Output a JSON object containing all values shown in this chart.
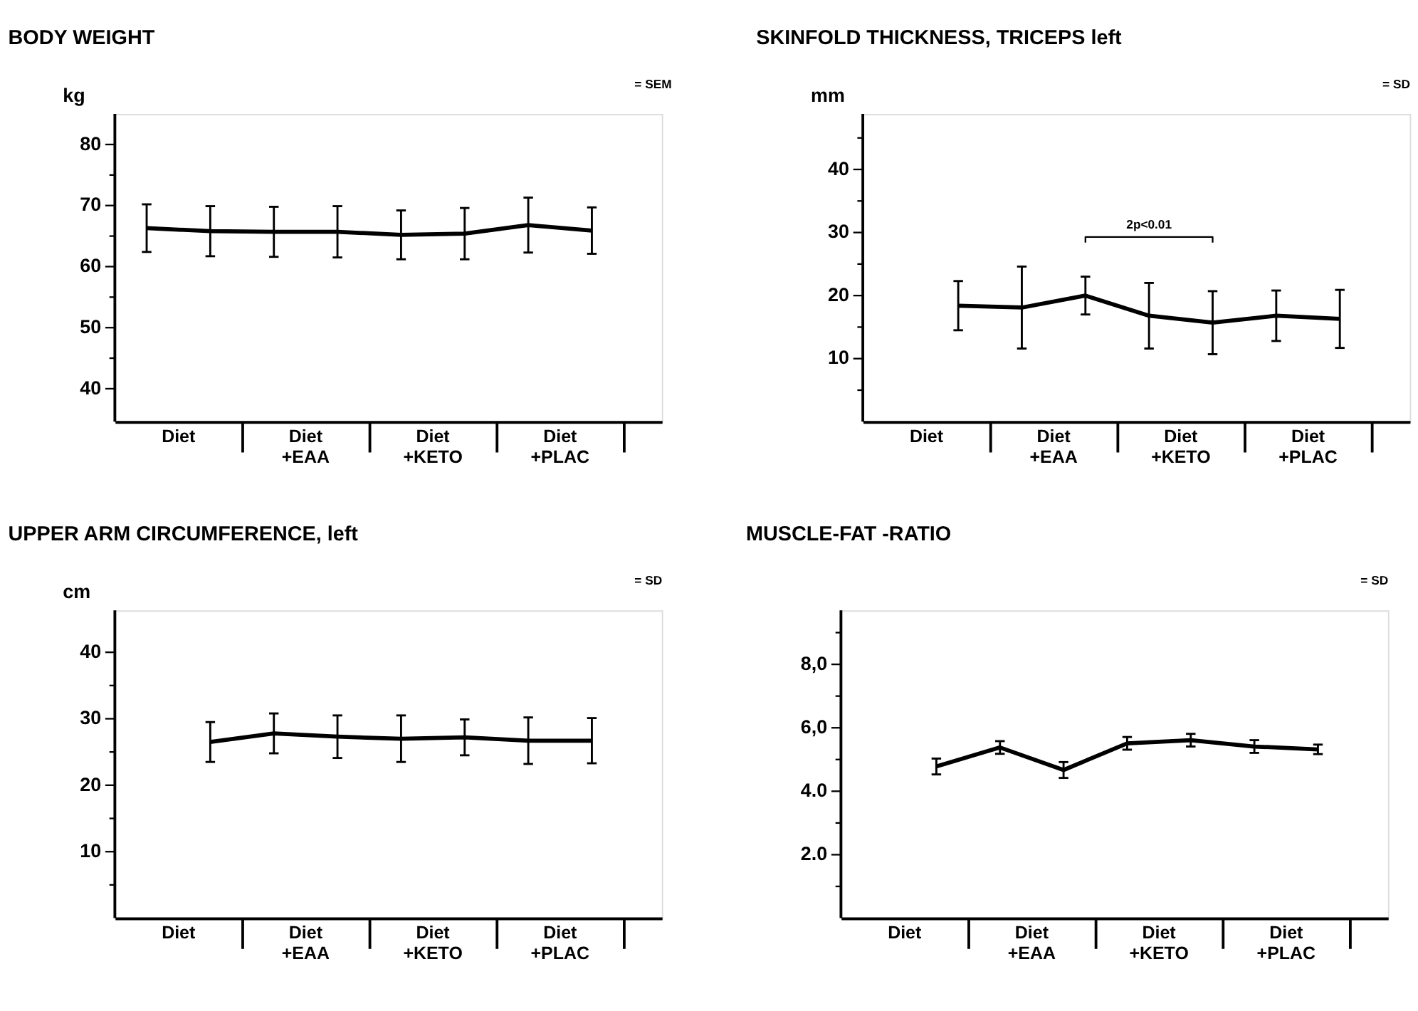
{
  "chart_data": [
    {
      "type": "line",
      "title": "BODY WEIGHT",
      "ylabel": "kg",
      "color": "#000000",
      "annotations": [
        "= SEM",
        "Diet",
        "Diet\n+EAA",
        "Diet\n+KETO",
        "Diet\n+PLAC"
      ],
      "categories": [
        null,
        null,
        null,
        null,
        null,
        null,
        null,
        null
      ],
      "values": [
        66.3,
        65.8,
        65.7,
        65.7,
        65.2,
        65.4,
        66.8,
        65.9
      ],
      "errors": [
        3.9,
        4.1,
        4.1,
        4.2,
        4.0,
        4.2,
        4.5,
        3.8
      ],
      "ylim": [
        34.6,
        85
      ],
      "yticks": [
        40,
        {
          "value": 45,
          "label": null
        },
        50,
        {
          "value": 55,
          "label": null
        },
        60,
        {
          "value": 65,
          "label": null
        },
        70,
        {
          "value": 75,
          "label": null
        },
        80
      ]
    },
    {
      "type": "line",
      "title": "SKINFOLD THICKNESS, TRICEPS left",
      "ylabel": "mm",
      "color": "#000000",
      "annotations": [
        "= SD",
        "Diet",
        "Diet\n+EAA",
        "Diet\n+KETO",
        "Diet\n+PLAC",
        "2p<0.01"
      ],
      "categories": [
        null,
        null,
        null,
        null,
        null,
        null,
        null,
        null
      ],
      "values": [
        null,
        18.4,
        18.1,
        20.0,
        16.8,
        15.7,
        16.8,
        16.3
      ],
      "errors": [
        null,
        3.9,
        6.5,
        3.0,
        5.2,
        5.0,
        4.0,
        4.6
      ],
      "ylim": [
        0,
        48.8
      ],
      "yticks": [
        {
          "value": 5,
          "label": null
        },
        10,
        {
          "value": 15,
          "label": null
        },
        20,
        {
          "value": 25,
          "label": null
        },
        30,
        {
          "value": 35,
          "label": null
        },
        40,
        {
          "value": 45,
          "label": null
        }
      ]
    },
    {
      "type": "line",
      "title": "UPPER ARM CIRCUMFERENCE, left",
      "ylabel": "cm",
      "color": "#000000",
      "annotations": [
        "= SD",
        "Diet",
        "Diet\n+EAA",
        "Diet\n+KETO",
        "Diet\n+PLAC"
      ],
      "categories": [
        null,
        null,
        null,
        null,
        null,
        null,
        null,
        null
      ],
      "values": [
        null,
        26.5,
        27.8,
        27.3,
        27.0,
        27.2,
        26.7,
        26.7
      ],
      "errors": [
        null,
        3.0,
        3.0,
        3.2,
        3.5,
        2.7,
        3.5,
        3.4
      ],
      "ylim": [
        0,
        46.3
      ],
      "yticks": [
        {
          "value": 5,
          "label": null
        },
        10,
        {
          "value": 15,
          "label": null
        },
        20,
        {
          "value": 25,
          "label": null
        },
        30,
        {
          "value": 35,
          "label": null
        },
        40
      ]
    },
    {
      "type": "line",
      "title": "MUSCLE-FAT -RATIO",
      "color": "#000000",
      "annotations": [
        "= SD",
        "Diet",
        "Diet\n+EAA",
        "Diet\n+KETO",
        "Diet\n+PLAC"
      ],
      "categories": [
        null,
        null,
        null,
        null,
        null,
        null,
        null,
        null
      ],
      "values": [
        null,
        4.78,
        5.38,
        4.67,
        5.51,
        5.61,
        5.41,
        5.32
      ],
      "errors": [
        null,
        0.25,
        0.2,
        0.25,
        0.2,
        0.2,
        0.2,
        0.15
      ],
      "ylim": [
        0,
        9.7
      ],
      "yticks": [
        {
          "value": 1,
          "label": null
        },
        {
          "value": 2,
          "label": "2.0"
        },
        {
          "value": 3,
          "label": null
        },
        {
          "value": 4,
          "label": "4.0"
        },
        {
          "value": 5,
          "label": null
        },
        {
          "value": 6,
          "label": "6,0"
        },
        {
          "value": 7,
          "label": null
        },
        {
          "value": 8,
          "label": "8,0"
        },
        {
          "value": 9,
          "label": null
        }
      ]
    }
  ]
}
